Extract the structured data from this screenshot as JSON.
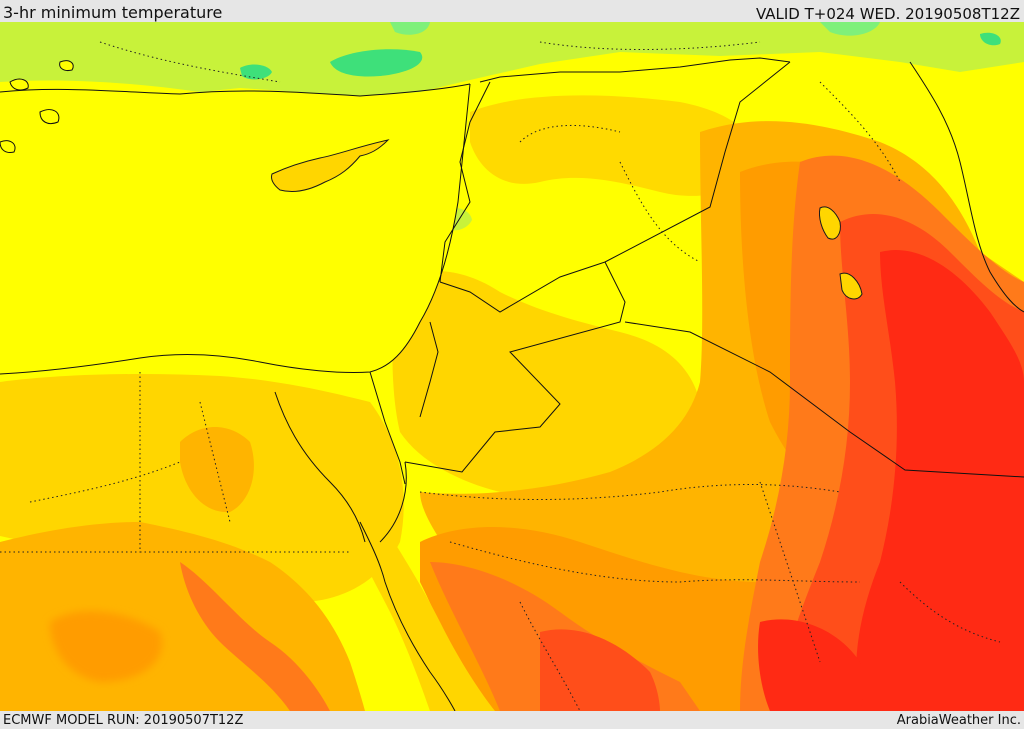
{
  "header": {
    "title": "3-hr minimum temperature",
    "valid": "VALID T+024 WED. 20190508T12Z"
  },
  "footer": {
    "model_run": "ECMWF MODEL RUN: 20190507T12Z",
    "credit": "ArabiaWeather Inc."
  },
  "map": {
    "field": "3-hr minimum temperature",
    "colors": {
      "green_light": "#7ef07a",
      "green": "#3ee07a",
      "yellow_green": "#c8f23a",
      "yellow": "#ffff00",
      "yellow_orange": "#ffd600",
      "orange_light": "#ffb400",
      "orange": "#ff9c00",
      "orange_dark": "#ff7a1a",
      "red_orange": "#ff4e1a",
      "red": "#ff2a14"
    }
  }
}
